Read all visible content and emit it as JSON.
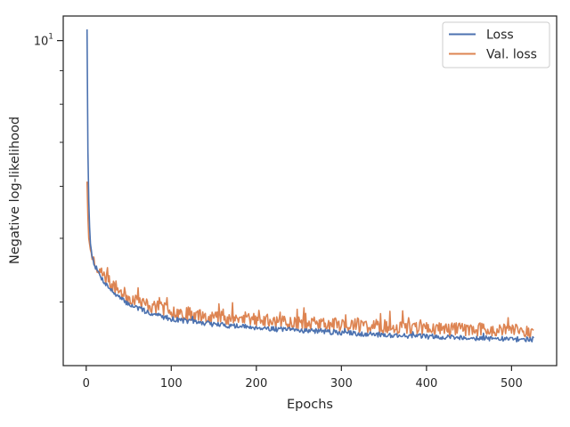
{
  "chart_data": {
    "type": "line",
    "title": "",
    "xlabel": "Epochs",
    "ylabel": "Negative log-likelihood",
    "xlim": [
      -27,
      553
    ],
    "ylim": [
      3.2,
      10.9
    ],
    "yscale": "log",
    "x_ticks": [
      0,
      100,
      200,
      300,
      400,
      500
    ],
    "x_tick_labels": [
      "0",
      "100",
      "200",
      "300",
      "400",
      "500"
    ],
    "y_major_ticks": [
      10
    ],
    "y_tick_label": {
      "base": "10",
      "exponent": "1"
    },
    "grid": false,
    "legend": {
      "position": "top-right"
    },
    "series": [
      {
        "name": "Loss",
        "color": "#4c72b0",
        "x": [
          1,
          2,
          3,
          4,
          5,
          7,
          10,
          15,
          20,
          30,
          40,
          50,
          60,
          70,
          80,
          90,
          100,
          120,
          140,
          160,
          180,
          200,
          230,
          260,
          300,
          330,
          360,
          400,
          430,
          460,
          500,
          526
        ],
        "y": [
          10.4,
          6.8,
          5.7,
          5.2,
          4.9,
          4.7,
          4.55,
          4.42,
          4.31,
          4.16,
          4.05,
          3.97,
          3.92,
          3.87,
          3.83,
          3.8,
          3.77,
          3.74,
          3.71,
          3.69,
          3.67,
          3.66,
          3.63,
          3.62,
          3.59,
          3.575,
          3.56,
          3.545,
          3.535,
          3.525,
          3.51,
          3.51
        ]
      },
      {
        "name": "Val. loss",
        "color": "#dd8452",
        "x": [
          1,
          2,
          3,
          5,
          7,
          10,
          15,
          20,
          30,
          40,
          50,
          60,
          80,
          100,
          120,
          150,
          180,
          200,
          250,
          300,
          350,
          400,
          450,
          500,
          526
        ],
        "y": [
          6.1,
          5.4,
          5.0,
          4.8,
          4.7,
          4.6,
          4.48,
          4.38,
          4.25,
          4.15,
          4.07,
          4.01,
          3.93,
          3.88,
          3.84,
          3.8,
          3.77,
          3.75,
          3.72,
          3.69,
          3.67,
          3.65,
          3.635,
          3.62,
          3.61
        ]
      }
    ]
  }
}
